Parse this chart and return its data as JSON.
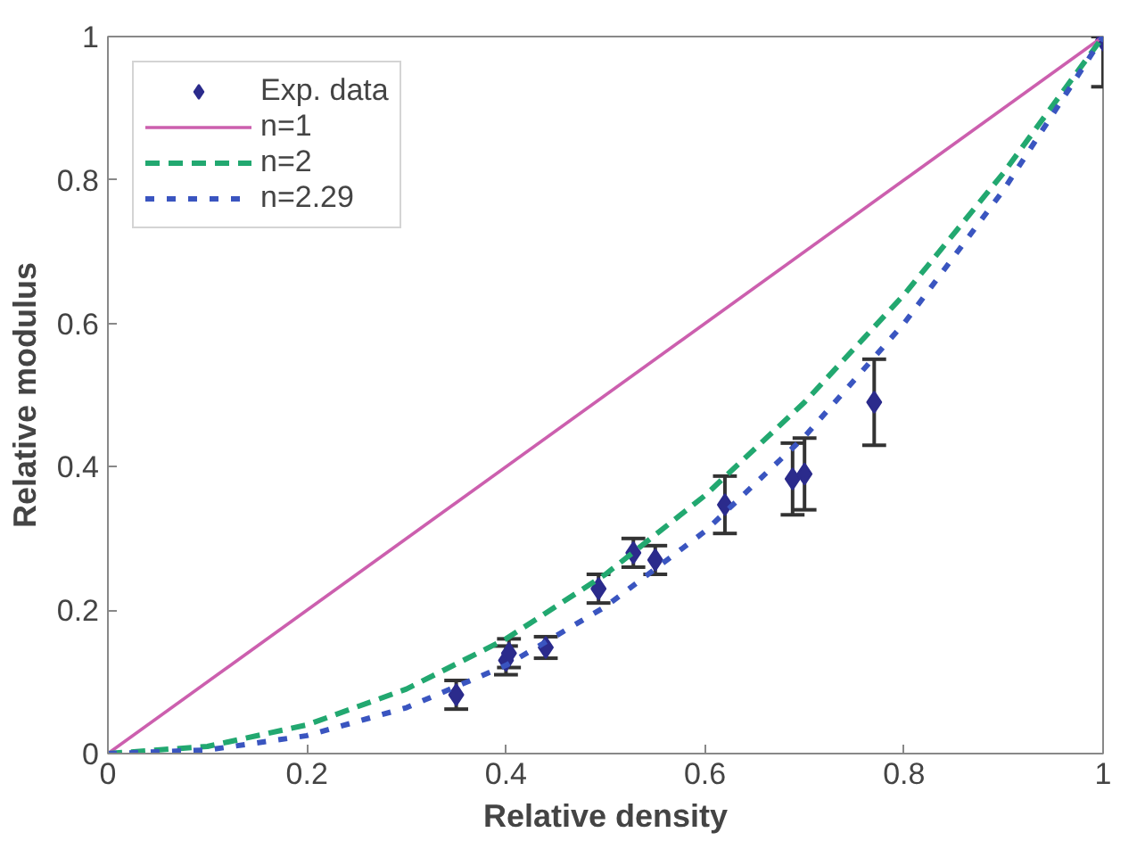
{
  "chart_data": {
    "type": "line",
    "xlabel": "Relative density",
    "ylabel": "Relative modulus",
    "xlim": [
      0,
      1
    ],
    "ylim": [
      0,
      1
    ],
    "xticks": [
      0,
      0.2,
      0.4,
      0.6,
      0.8,
      1
    ],
    "yticks": [
      0,
      0.2,
      0.4,
      0.6,
      0.8,
      1
    ],
    "grid": false,
    "legend": "top left",
    "series": [
      {
        "name": "Exp. data",
        "type": "scatter",
        "marker": "diamond",
        "color": "#2b2b8c",
        "x": [
          0.35,
          0.4,
          0.403,
          0.44,
          0.493,
          0.528,
          0.55,
          0.62,
          0.688,
          0.7,
          0.77,
          1
        ],
        "values": [
          0.082,
          0.13,
          0.14,
          0.148,
          0.23,
          0.28,
          0.27,
          0.347,
          0.383,
          0.39,
          0.49,
          0.995
        ],
        "errors": [
          0.02,
          0.02,
          0.02,
          0.015,
          0.02,
          0.02,
          0.02,
          0.04,
          0.05,
          0.05,
          0.06,
          [
            0.93,
            1
          ]
        ]
      },
      {
        "name": "n=1",
        "line_style": "solid",
        "color": "#cc5fae",
        "x": [
          0,
          1
        ],
        "values": [
          0,
          1
        ]
      },
      {
        "name": "n=2",
        "line_style": "dashed",
        "color": "#22a870",
        "x": [
          0,
          0.1,
          0.2,
          0.3,
          0.4,
          0.5,
          0.6,
          0.7,
          0.8,
          0.9,
          1
        ],
        "values": [
          0,
          0.01,
          0.04,
          0.09,
          0.16,
          0.25,
          0.36,
          0.49,
          0.64,
          0.81,
          1
        ]
      },
      {
        "name": "n=2.29",
        "line_style": "dotted",
        "color": "#3a55c0",
        "x": [
          0,
          0.1,
          0.2,
          0.3,
          0.4,
          0.5,
          0.6,
          0.7,
          0.8,
          0.9,
          1
        ],
        "values": [
          0,
          0.005,
          0.025,
          0.064,
          0.123,
          0.205,
          0.31,
          0.442,
          0.6,
          0.786,
          1
        ]
      }
    ]
  }
}
